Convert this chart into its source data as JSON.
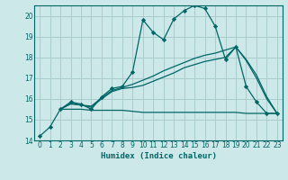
{
  "xlabel": "Humidex (Indice chaleur)",
  "background_color": "#cce8e8",
  "grid_color": "#aacccc",
  "line_color": "#006666",
  "xlim": [
    -0.5,
    23.5
  ],
  "ylim": [
    14,
    20.5
  ],
  "xticks": [
    0,
    1,
    2,
    3,
    4,
    5,
    6,
    7,
    8,
    9,
    10,
    11,
    12,
    13,
    14,
    15,
    16,
    17,
    18,
    19,
    20,
    21,
    22,
    23
  ],
  "yticks": [
    14,
    15,
    16,
    17,
    18,
    19,
    20
  ],
  "series_main": {
    "x": [
      0,
      1,
      2,
      3,
      4,
      5,
      6,
      7,
      8,
      9,
      10,
      11,
      12,
      13,
      14,
      15,
      16,
      17,
      18,
      19,
      20,
      21,
      22,
      23
    ],
    "y": [
      14.2,
      14.65,
      15.5,
      15.85,
      15.75,
      15.5,
      16.1,
      16.5,
      16.6,
      17.3,
      19.8,
      19.2,
      18.85,
      19.85,
      20.25,
      20.5,
      20.35,
      19.5,
      17.9,
      18.5,
      16.6,
      15.85,
      15.3,
      15.3
    ]
  },
  "series_flat": {
    "x": [
      2,
      3,
      4,
      5,
      6,
      7,
      8,
      9,
      10,
      11,
      12,
      13,
      14,
      15,
      16,
      17,
      18,
      19,
      20,
      21,
      22,
      23
    ],
    "y": [
      15.5,
      15.5,
      15.5,
      15.45,
      15.45,
      15.45,
      15.45,
      15.4,
      15.35,
      15.35,
      15.35,
      15.35,
      15.35,
      15.35,
      15.35,
      15.35,
      15.35,
      15.35,
      15.3,
      15.3,
      15.3,
      15.3
    ]
  },
  "series_slope1": {
    "x": [
      2,
      3,
      4,
      5,
      6,
      7,
      8,
      9,
      10,
      11,
      12,
      13,
      14,
      15,
      16,
      17,
      18,
      19,
      20,
      21,
      22,
      23
    ],
    "y": [
      15.5,
      15.75,
      15.7,
      15.6,
      16.0,
      16.35,
      16.5,
      16.55,
      16.65,
      16.85,
      17.05,
      17.25,
      17.5,
      17.65,
      17.8,
      17.9,
      18.0,
      18.5,
      17.85,
      17.0,
      16.0,
      15.3
    ]
  },
  "series_slope2": {
    "x": [
      2,
      3,
      4,
      5,
      6,
      7,
      8,
      9,
      10,
      11,
      12,
      13,
      14,
      15,
      16,
      17,
      18,
      19,
      20,
      21,
      22,
      23
    ],
    "y": [
      15.5,
      15.8,
      15.7,
      15.65,
      16.05,
      16.4,
      16.55,
      16.7,
      16.9,
      17.1,
      17.35,
      17.55,
      17.75,
      17.95,
      18.1,
      18.2,
      18.35,
      18.5,
      17.9,
      17.15,
      16.1,
      15.3
    ]
  }
}
